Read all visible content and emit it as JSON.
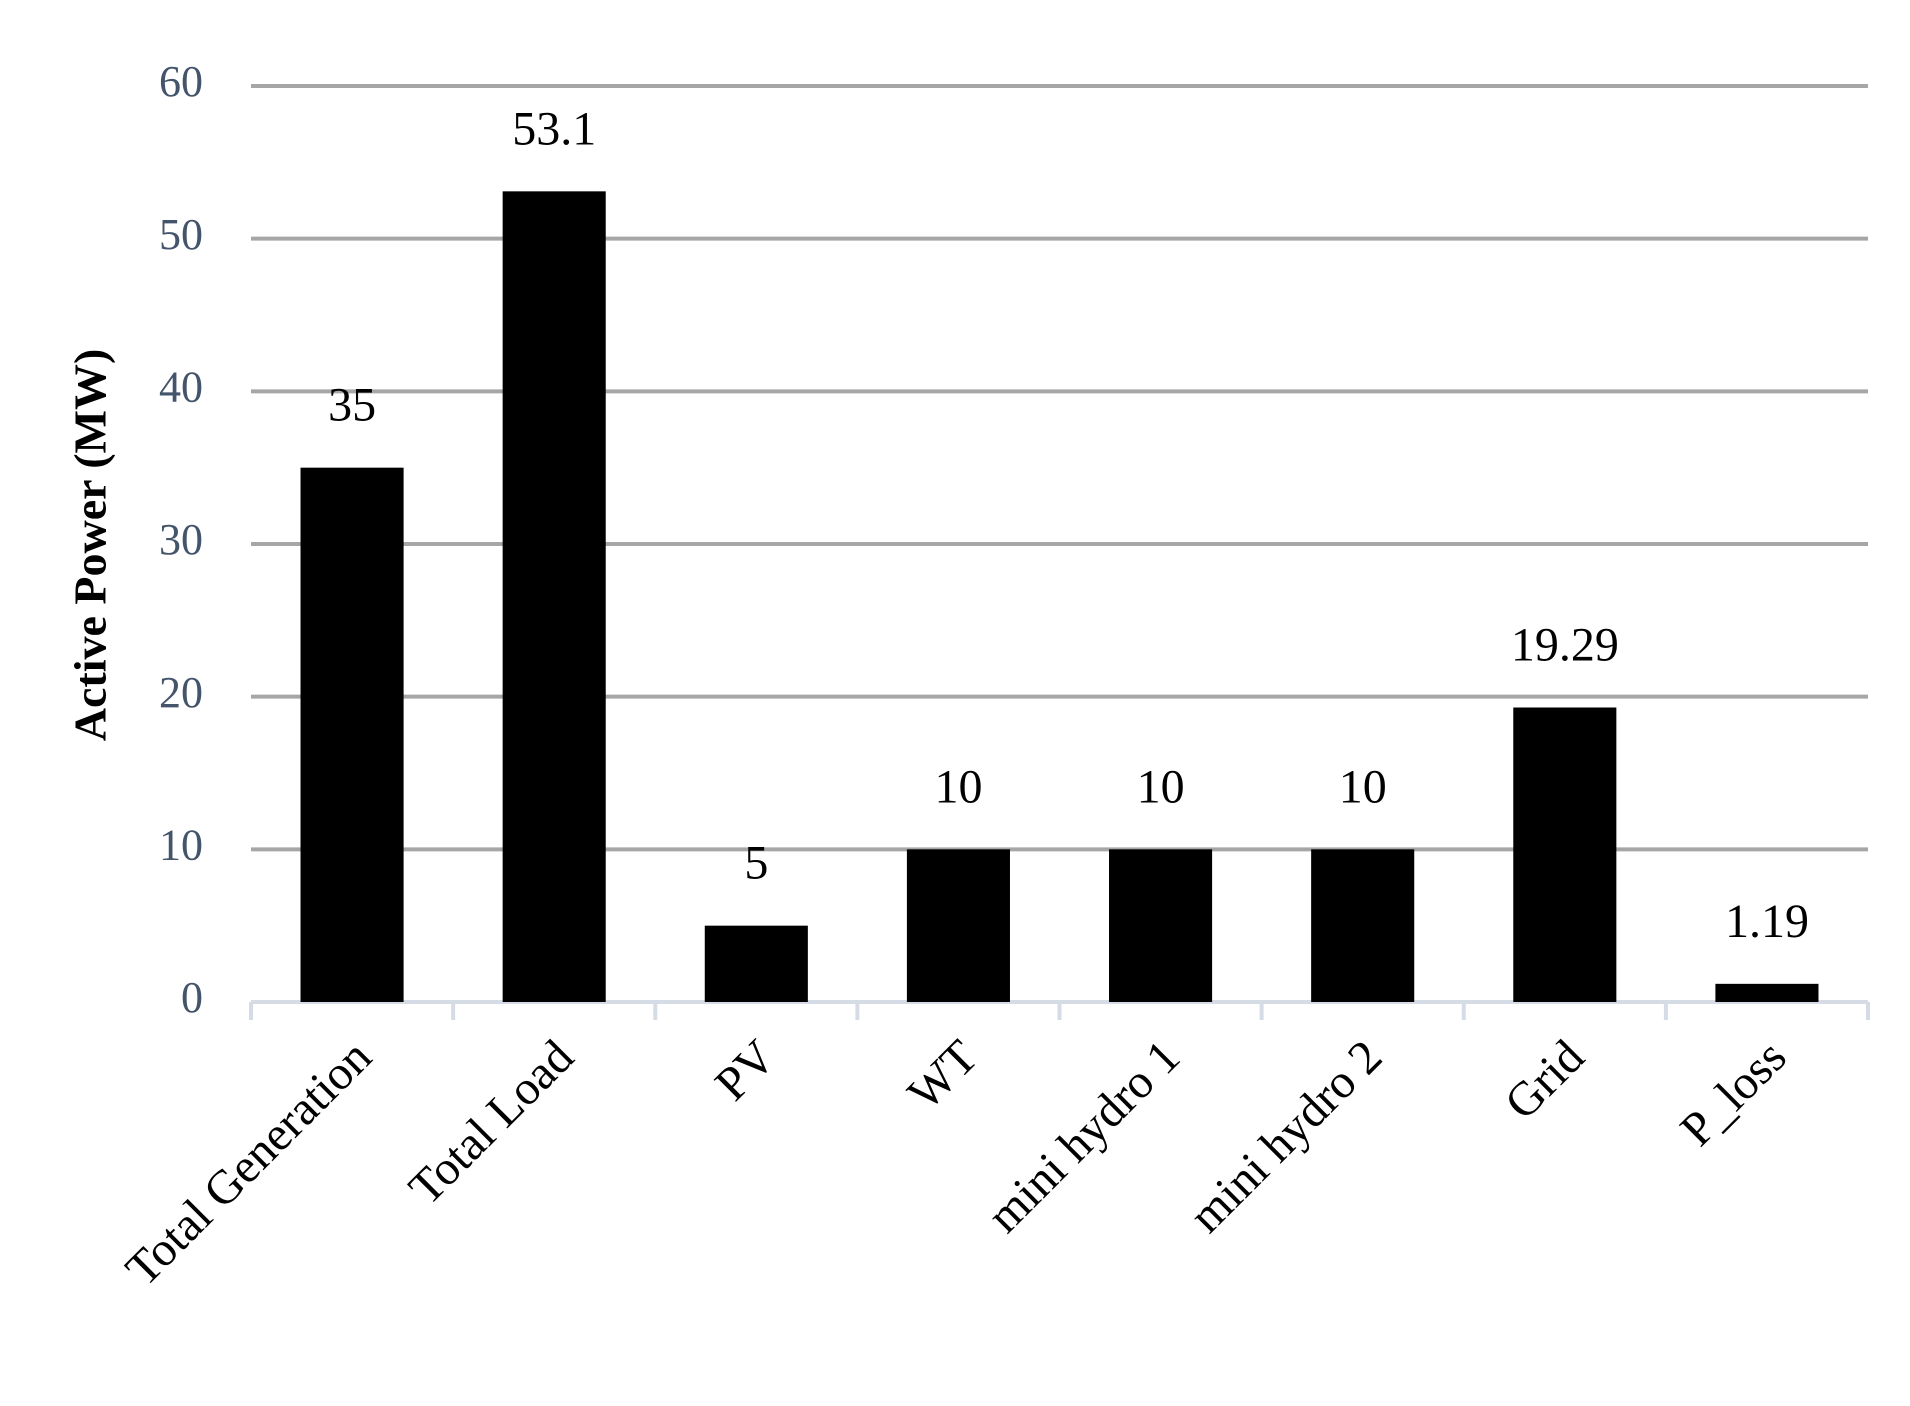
{
  "chart_data": {
    "type": "bar",
    "y_label": "Active  Power (MW)",
    "categories": [
      "Total Generation",
      "Total Load",
      "PV",
      "WT",
      "mini hydro 1",
      "mini hydro 2",
      "Grid",
      "P_loss"
    ],
    "values": [
      35,
      53.1,
      5,
      10,
      10,
      10,
      19.29,
      1.19
    ],
    "color": "#000000",
    "ylim": [
      0,
      60
    ],
    "yticks": [
      0,
      10,
      20,
      30,
      40,
      50,
      60
    ],
    "grid": true,
    "data_labels": true
  }
}
